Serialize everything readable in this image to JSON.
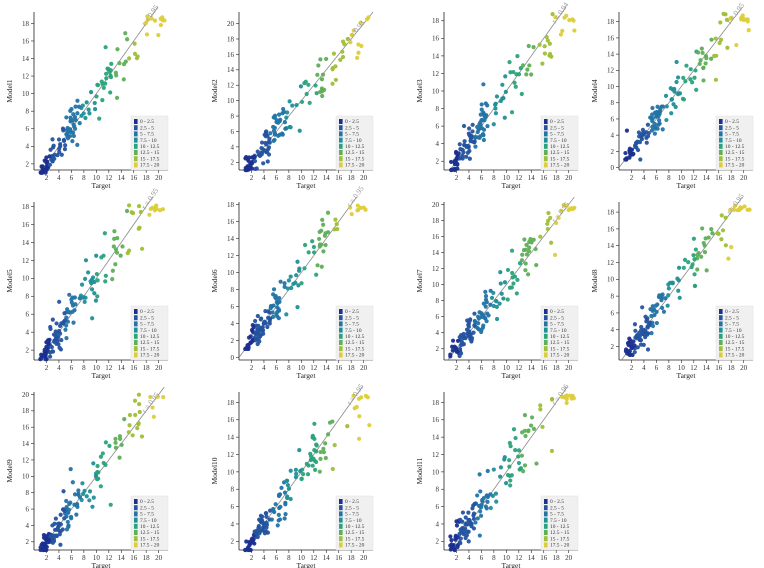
{
  "colors": {
    "bins": [
      "#1a2f8f",
      "#24539f",
      "#2373a5",
      "#1f8f97",
      "#2aa27c",
      "#5fae58",
      "#9ebf36",
      "#dccd3a"
    ],
    "fit_line": "#8a8a8a",
    "legend_bg": "#f0f0f0"
  },
  "legend_labels": [
    "0 - 2.5",
    "2.5 - 5",
    "5 - 7.5",
    "7.5 - 10",
    "10 - 12.5",
    "12.5 - 15",
    "15 - 17.5",
    "17.5 - 20"
  ],
  "chart_data": [
    {
      "type": "scatter",
      "xlabel": "Target",
      "ylabel": "Model1",
      "r_label": "r = 0.95",
      "xlim": [
        0,
        21.5
      ],
      "ylim": [
        1.3,
        19.3
      ],
      "xticks": [
        2,
        4,
        6,
        8,
        10,
        12,
        14,
        16,
        18,
        20
      ],
      "yticks": [
        2,
        4,
        6,
        8,
        10,
        12,
        14,
        16,
        18
      ],
      "seed": 11
    },
    {
      "type": "scatter",
      "xlabel": "Target",
      "ylabel": "Model2",
      "r_label": "r = 0.93",
      "xlim": [
        0,
        21.5
      ],
      "ylim": [
        1.0,
        21.5
      ],
      "xticks": [
        2,
        4,
        6,
        8,
        10,
        12,
        14,
        16,
        18,
        20
      ],
      "yticks": [
        2,
        4,
        6,
        8,
        10,
        12,
        14,
        16,
        18,
        20
      ],
      "seed": 22
    },
    {
      "type": "scatter",
      "xlabel": "Target",
      "ylabel": "Model3",
      "r_label": "r = 0.94",
      "xlim": [
        0,
        21.5
      ],
      "ylim": [
        1.0,
        19.0
      ],
      "xticks": [
        2,
        4,
        6,
        8,
        10,
        12,
        14,
        16,
        18,
        20
      ],
      "yticks": [
        2,
        4,
        6,
        8,
        10,
        12,
        14,
        16,
        18
      ],
      "seed": 33
    },
    {
      "type": "scatter",
      "xlabel": "Target",
      "ylabel": "Model4",
      "r_label": "r = 0.95",
      "xlim": [
        0,
        21.5
      ],
      "ylim": [
        -0.3,
        19.2
      ],
      "xticks": [
        2,
        4,
        6,
        8,
        10,
        12,
        14,
        16,
        18,
        20
      ],
      "yticks": [
        0,
        2,
        4,
        6,
        8,
        10,
        12,
        14,
        16,
        18
      ],
      "seed": 44
    },
    {
      "type": "scatter",
      "xlabel": "Target",
      "ylabel": "Model5",
      "r_label": "r = 0.95",
      "xlim": [
        0,
        21.5
      ],
      "ylim": [
        0.9,
        18.5
      ],
      "xticks": [
        2,
        4,
        6,
        8,
        10,
        12,
        14,
        16,
        18,
        20
      ],
      "yticks": [
        2,
        4,
        6,
        8,
        10,
        12,
        14,
        16,
        18
      ],
      "seed": 55
    },
    {
      "type": "scatter",
      "xlabel": "Target",
      "ylabel": "Model6",
      "r_label": "r = 0.95",
      "xlim": [
        0,
        21.5
      ],
      "ylim": [
        -0.3,
        18.3
      ],
      "xticks": [
        2,
        4,
        6,
        8,
        10,
        12,
        14,
        16,
        18,
        20
      ],
      "yticks": [
        0,
        2,
        4,
        6,
        8,
        10,
        12,
        14,
        16,
        18
      ],
      "seed": 66
    },
    {
      "type": "scatter",
      "xlabel": "Target",
      "ylabel": "Model7",
      "r_label": "r = 0.95",
      "xlim": [
        0,
        21.5
      ],
      "ylim": [
        0.6,
        20.3
      ],
      "xticks": [
        2,
        4,
        6,
        8,
        10,
        12,
        14,
        16,
        18,
        20
      ],
      "yticks": [
        2,
        4,
        6,
        8,
        10,
        12,
        14,
        16,
        18,
        20
      ],
      "seed": 77
    },
    {
      "type": "scatter",
      "xlabel": "Target",
      "ylabel": "Model8",
      "r_label": "r = 0.95",
      "xlim": [
        0,
        21.5
      ],
      "ylim": [
        0.4,
        19.2
      ],
      "xticks": [
        2,
        4,
        6,
        8,
        10,
        12,
        14,
        16,
        18,
        20
      ],
      "yticks": [
        2,
        4,
        6,
        8,
        10,
        12,
        14,
        16,
        18
      ],
      "seed": 88
    },
    {
      "type": "scatter",
      "xlabel": "Target",
      "ylabel": "Model9",
      "r_label": "r = 0.95",
      "xlim": [
        0,
        21.5
      ],
      "ylim": [
        1.0,
        20.3
      ],
      "xticks": [
        2,
        4,
        6,
        8,
        10,
        12,
        14,
        16,
        18,
        20
      ],
      "yticks": [
        2,
        4,
        6,
        8,
        10,
        12,
        14,
        16,
        18,
        20
      ],
      "seed": 99
    },
    {
      "type": "scatter",
      "xlabel": "Target",
      "ylabel": "Model10",
      "r_label": "r = 0.95",
      "xlim": [
        0,
        21.5
      ],
      "ylim": [
        1.0,
        19.2
      ],
      "xticks": [
        2,
        4,
        6,
        8,
        10,
        12,
        14,
        16,
        18,
        20
      ],
      "yticks": [
        2,
        4,
        6,
        8,
        10,
        12,
        14,
        16,
        18
      ],
      "seed": 110
    },
    {
      "type": "scatter",
      "xlabel": "Target",
      "ylabel": "Model11",
      "r_label": "r = 0.96",
      "xlim": [
        0,
        21.5
      ],
      "ylim": [
        1.0,
        19.2
      ],
      "xticks": [
        2,
        4,
        6,
        8,
        10,
        12,
        14,
        16,
        18,
        20
      ],
      "yticks": [
        2,
        4,
        6,
        8,
        10,
        12,
        14,
        16,
        18
      ],
      "seed": 121
    }
  ]
}
